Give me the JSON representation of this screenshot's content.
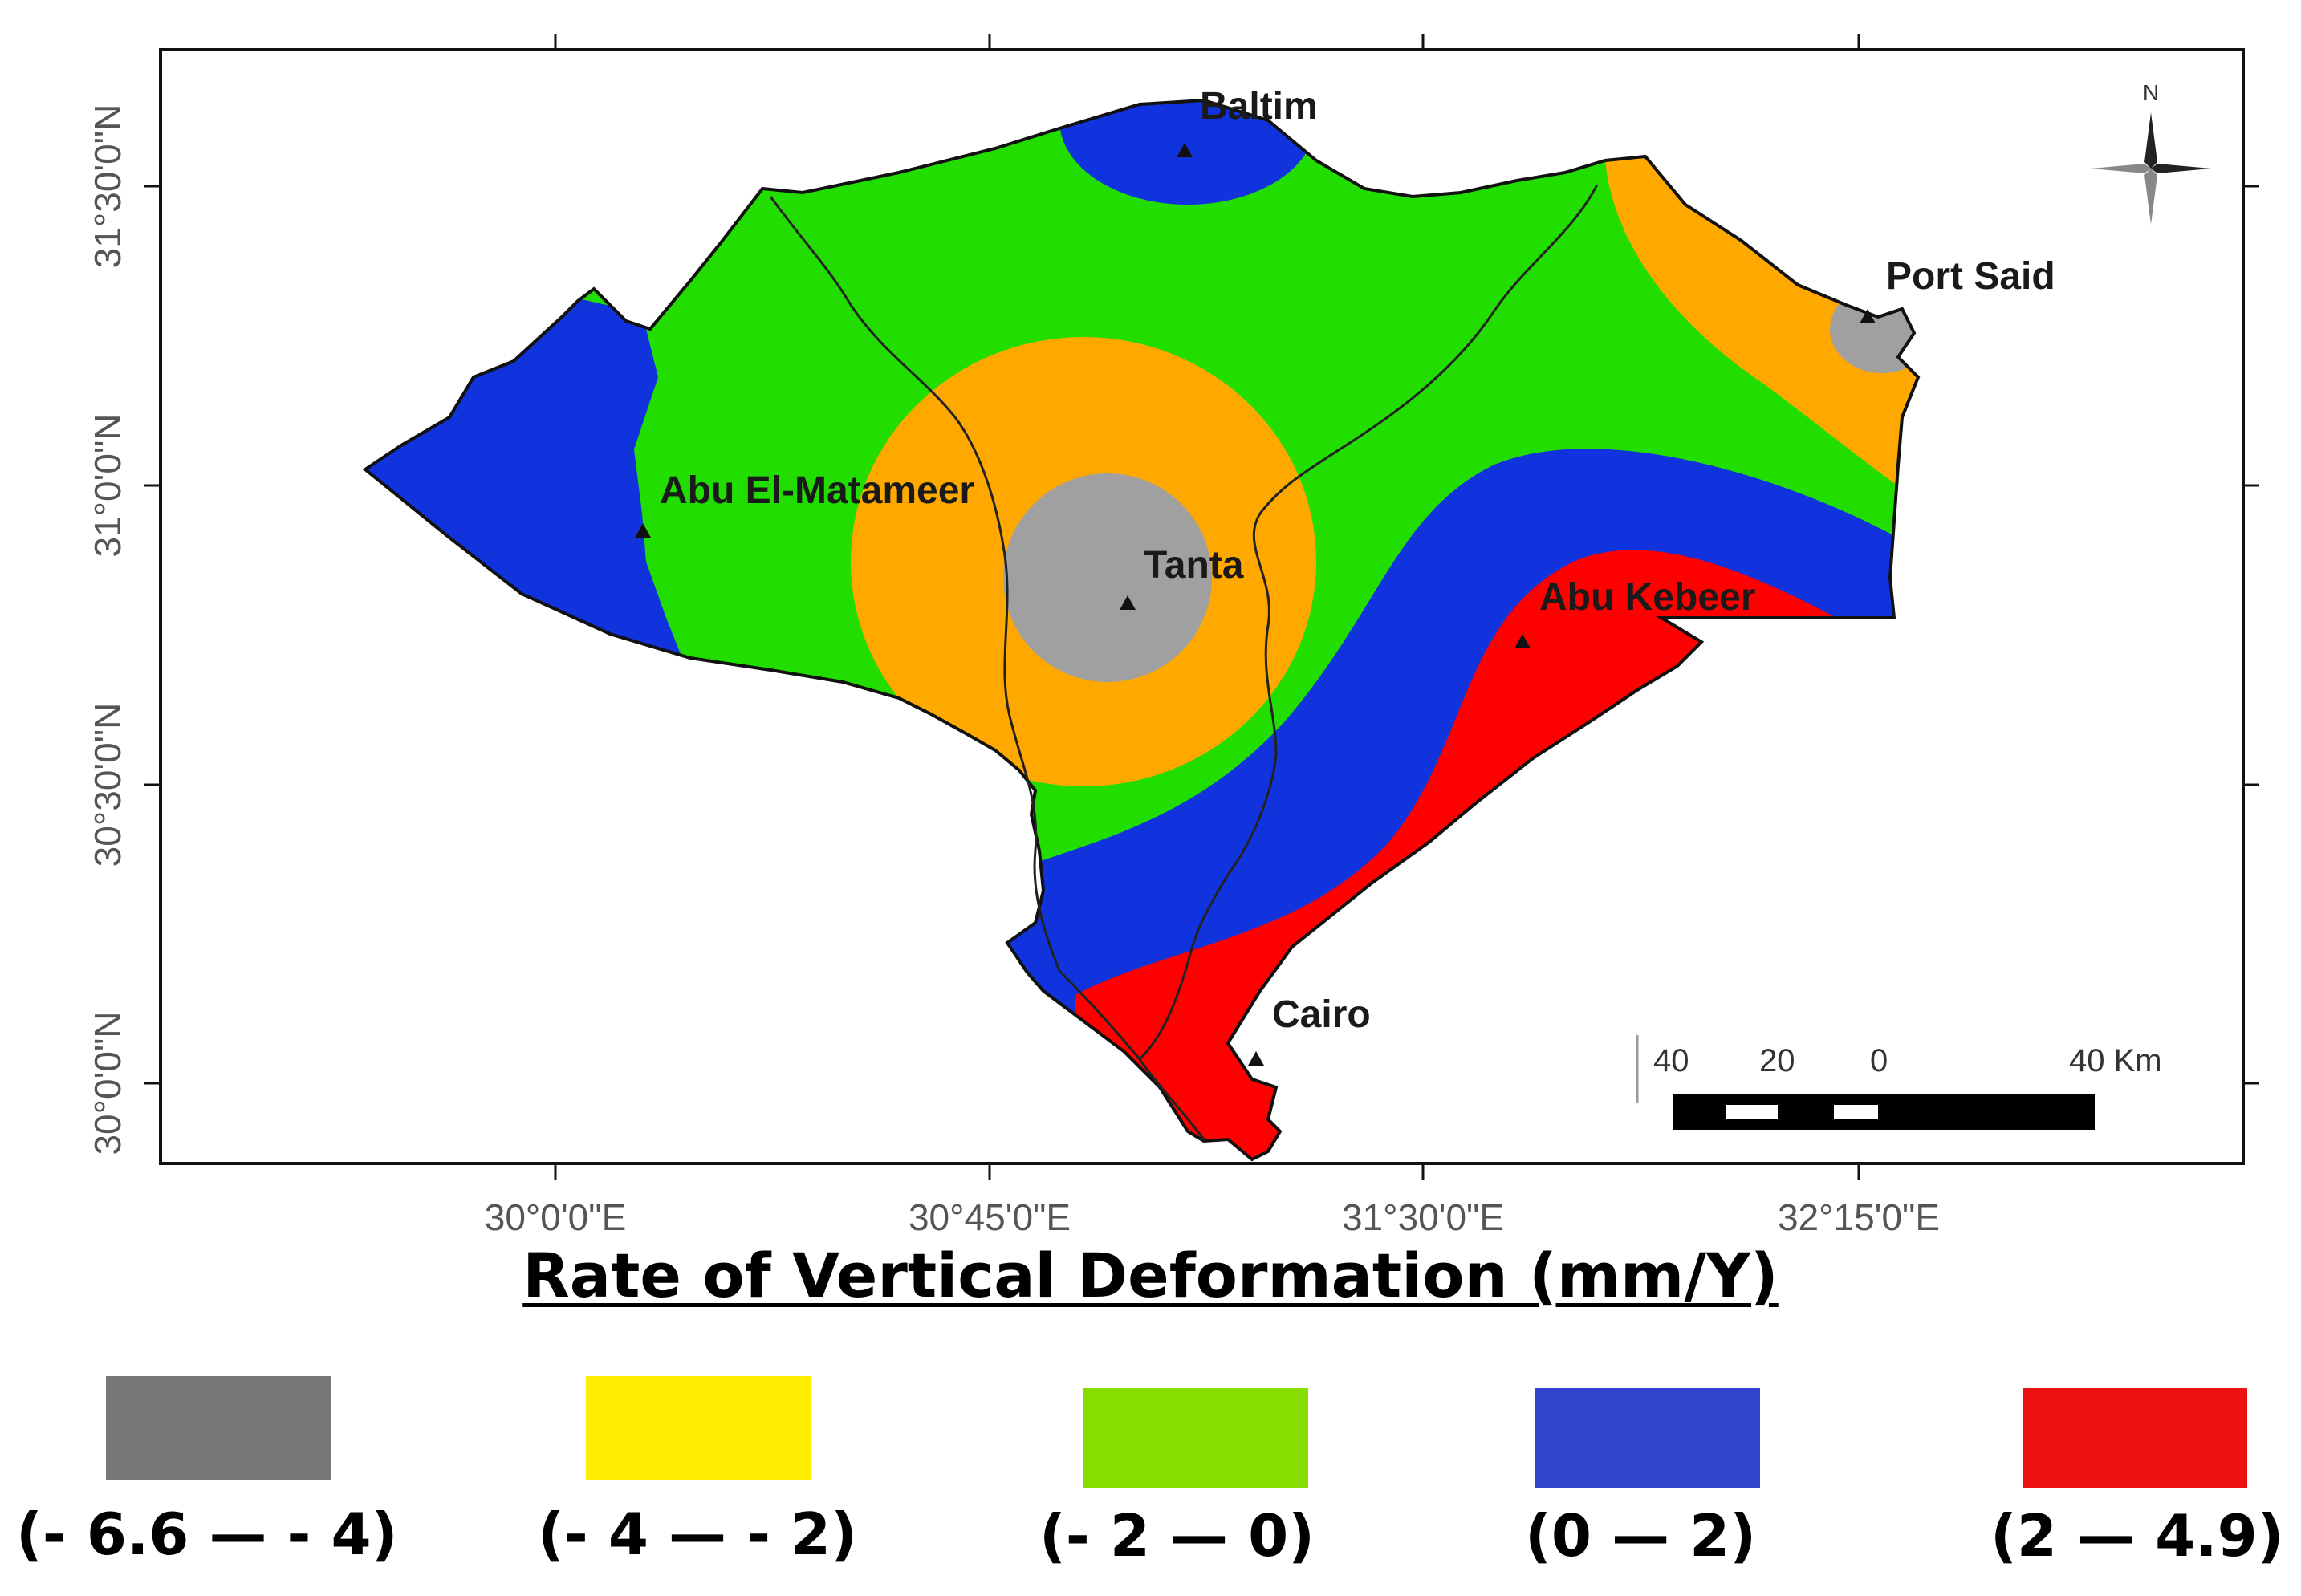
{
  "map": {
    "lat_labels": [
      "31°30'0\"N",
      "31°0'0\"N",
      "30°30'0\"N",
      "30°0'0\"N"
    ],
    "lon_labels": [
      "30°0'0\"E",
      "30°45'0\"E",
      "31°30'0\"E",
      "32°15'0\"E"
    ],
    "cities": {
      "baltim": "Baltim",
      "port_said": "Port Said",
      "abu_el_matameer": "Abu El-Matameer",
      "tanta": "Tanta",
      "abu_kebeer": "Abu Kebeer",
      "cairo": "Cairo"
    },
    "north_label": "N",
    "scale_bar": {
      "labels": [
        "40",
        "20",
        "0",
        "40 Km"
      ]
    },
    "colors": {
      "gray": "#a0a0a0",
      "orange": "#ffa800",
      "green": "#22dd00",
      "blue": "#1133dd",
      "red": "#ff0000"
    }
  },
  "legend": {
    "title": "Rate of Vertical Deformation (mm/Y)",
    "items": [
      {
        "label": "(- 6.6 — - 4)",
        "color": "#777777"
      },
      {
        "label": "(- 4 — - 2)",
        "color": "#ffee00"
      },
      {
        "label": "(- 2 — 0)",
        "color": "#88dd00"
      },
      {
        "label": "(0 — 2)",
        "color": "#3344cc"
      },
      {
        "label": "(2 — 4.9)",
        "color": "#ee1111"
      }
    ]
  }
}
